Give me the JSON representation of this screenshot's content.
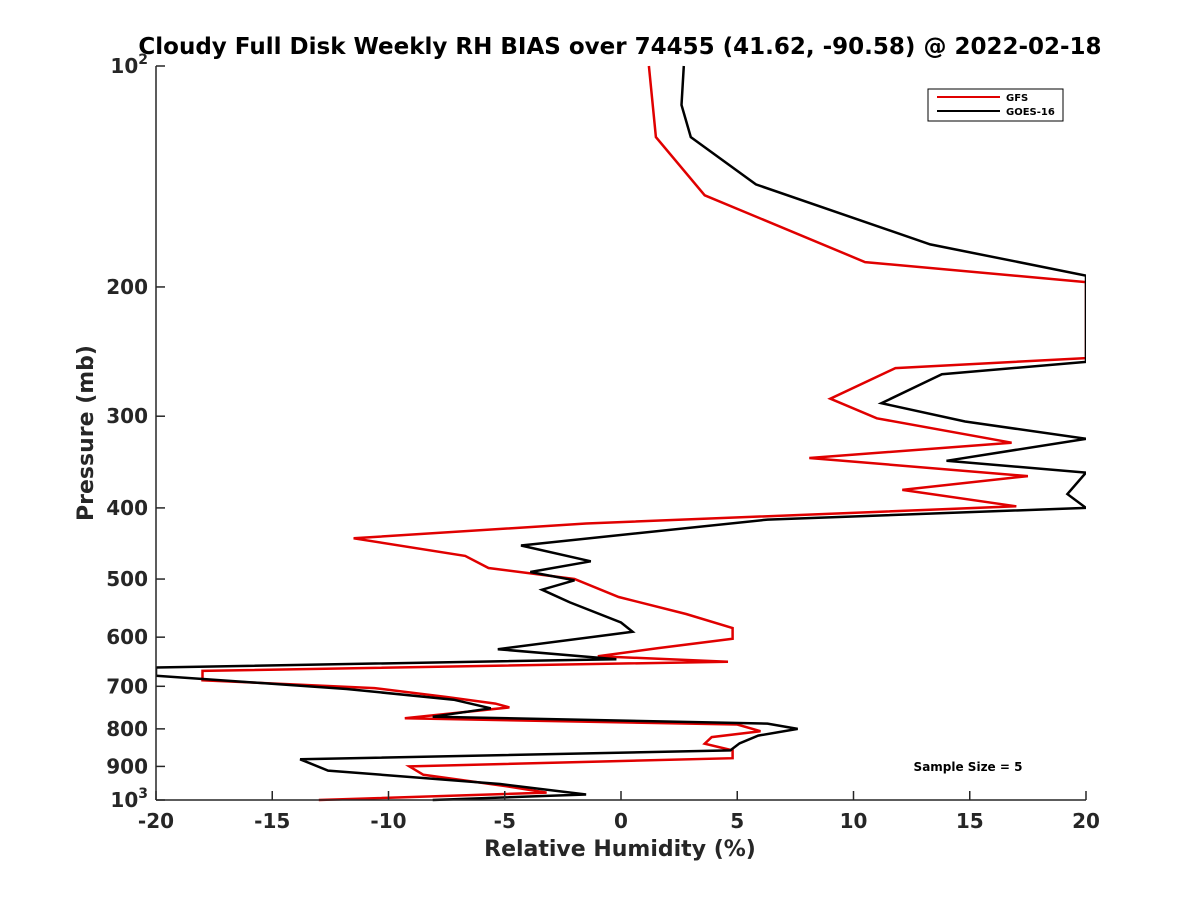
{
  "chart_data": {
    "type": "line",
    "title": "Cloudy Full Disk Weekly RH BIAS over 74455 (41.62, -90.58) @ 2022-02-18",
    "xlabel": "Relative Humidity (%)",
    "ylabel": "Pressure (mb)",
    "xlim": [
      -20,
      20
    ],
    "ylim": [
      100,
      1000
    ],
    "y_scale": "log",
    "y_reversed": true,
    "grid": false,
    "legend_position": "top-right",
    "x_ticks": [
      "-20",
      "-15",
      "-10",
      "-5",
      "0",
      "5",
      "10",
      "15",
      "20"
    ],
    "y_ticks": [
      {
        "value": 100,
        "base": "10",
        "exp": "2"
      },
      {
        "value": 200,
        "label": "200"
      },
      {
        "value": 300,
        "label": "300"
      },
      {
        "value": 400,
        "label": "400"
      },
      {
        "value": 500,
        "label": "500"
      },
      {
        "value": 600,
        "label": "600"
      },
      {
        "value": 700,
        "label": "700"
      },
      {
        "value": 800,
        "label": "800"
      },
      {
        "value": 900,
        "label": "900"
      },
      {
        "value": 1000,
        "base": "10",
        "exp": "3"
      }
    ],
    "series": [
      {
        "name": "GFS",
        "color": "#e00000",
        "points": [
          [
            1.2,
            100
          ],
          [
            1.5,
            125
          ],
          [
            3.6,
            150
          ],
          [
            10.5,
            185
          ],
          [
            20,
            197
          ],
          [
            20,
            250
          ],
          [
            11.8,
            258
          ],
          [
            9.0,
            284
          ],
          [
            11.0,
            302
          ],
          [
            16.8,
            326
          ],
          [
            8.1,
            342
          ],
          [
            17.5,
            362
          ],
          [
            12.1,
            378
          ],
          [
            17.0,
            398
          ],
          [
            -1.5,
            420
          ],
          [
            -11.5,
            440
          ],
          [
            -6.7,
            465
          ],
          [
            -5.7,
            483
          ],
          [
            -2.0,
            500
          ],
          [
            -0.1,
            529
          ],
          [
            2.8,
            558
          ],
          [
            4.8,
            583
          ],
          [
            4.8,
            603
          ],
          [
            1.6,
            621
          ],
          [
            -1.0,
            637
          ],
          [
            4.6,
            648
          ],
          [
            -18.0,
            667
          ],
          [
            -18.0,
            687
          ],
          [
            -10.6,
            704
          ],
          [
            -7.5,
            724
          ],
          [
            -5.4,
            739
          ],
          [
            -4.8,
            748
          ],
          [
            -9.3,
            774
          ],
          [
            5.0,
            789
          ],
          [
            6.0,
            806
          ],
          [
            3.9,
            821
          ],
          [
            3.6,
            838
          ],
          [
            4.8,
            856
          ],
          [
            4.8,
            877
          ],
          [
            -9.1,
            900
          ],
          [
            -8.5,
            924
          ],
          [
            -5.0,
            957
          ],
          [
            -3.2,
            977
          ],
          [
            -13.0,
            1000
          ]
        ]
      },
      {
        "name": "GOES-16",
        "color": "#000000",
        "points": [
          [
            2.7,
            100
          ],
          [
            2.6,
            113
          ],
          [
            3.0,
            125
          ],
          [
            5.8,
            145
          ],
          [
            13.3,
            175
          ],
          [
            20,
            193
          ],
          [
            20,
            253
          ],
          [
            13.8,
            263
          ],
          [
            11.2,
            288
          ],
          [
            14.8,
            305
          ],
          [
            20,
            322
          ],
          [
            14.0,
            345
          ],
          [
            20,
            358
          ],
          [
            19.2,
            383
          ],
          [
            20,
            400
          ],
          [
            6.3,
            415
          ],
          [
            -4.3,
            450
          ],
          [
            -1.3,
            473
          ],
          [
            -3.9,
            489
          ],
          [
            -2.0,
            502
          ],
          [
            -3.4,
            517
          ],
          [
            -2.2,
            538
          ],
          [
            0.0,
            573
          ],
          [
            0.5,
            590
          ],
          [
            -5.3,
            623
          ],
          [
            -0.2,
            643
          ],
          [
            -20.0,
            660
          ],
          [
            -20.0,
            677
          ],
          [
            -11.8,
            706
          ],
          [
            -7.2,
            730
          ],
          [
            -5.6,
            750
          ],
          [
            -8.1,
            770
          ],
          [
            6.3,
            787
          ],
          [
            7.6,
            800
          ],
          [
            5.9,
            817
          ],
          [
            5.1,
            837
          ],
          [
            4.7,
            856
          ],
          [
            -13.8,
            880
          ],
          [
            -12.6,
            912
          ],
          [
            -5.2,
            951
          ],
          [
            -1.5,
            983
          ],
          [
            -8.1,
            1000
          ]
        ]
      }
    ],
    "annotation": "Sample Size = 5"
  }
}
